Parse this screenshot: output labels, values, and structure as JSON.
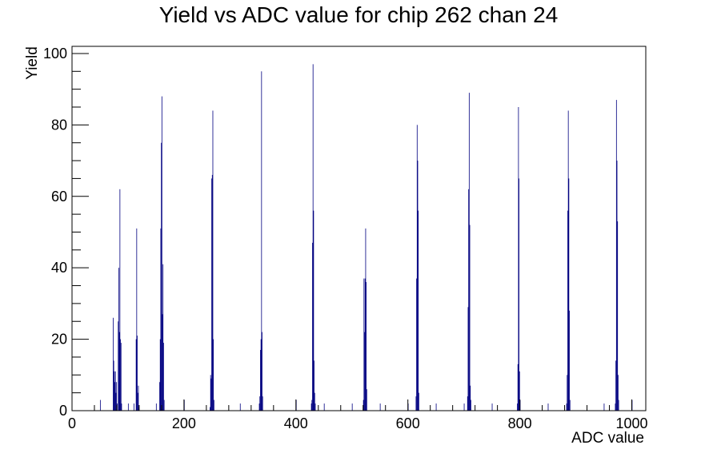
{
  "chart_data": {
    "type": "bar",
    "title": "Yield vs ADC value for chip 262 chan 24",
    "xlabel": "ADC value",
    "ylabel": "Yield",
    "xlim": [
      0,
      1025
    ],
    "ylim": [
      0,
      102
    ],
    "x_ticks": [
      0,
      200,
      400,
      600,
      800,
      1000
    ],
    "y_ticks": [
      0,
      20,
      40,
      60,
      80,
      100
    ],
    "grid": false,
    "legend": "none",
    "colors": {
      "series": "#000080",
      "axis": "#000000"
    },
    "series": [
      {
        "bins": [
          [
            50,
            3
          ],
          [
            73,
            26
          ],
          [
            74,
            14
          ],
          [
            75,
            11
          ],
          [
            76,
            8
          ],
          [
            77,
            11
          ],
          [
            78,
            5
          ],
          [
            79,
            8
          ],
          [
            80,
            2
          ],
          [
            82,
            25
          ],
          [
            83,
            40
          ],
          [
            84,
            22
          ],
          [
            85,
            62
          ],
          [
            86,
            20
          ],
          [
            87,
            19
          ],
          [
            88,
            2
          ],
          [
            100,
            2
          ],
          [
            110,
            2
          ],
          [
            114,
            20
          ],
          [
            115,
            51
          ],
          [
            116,
            21
          ],
          [
            117,
            5
          ],
          [
            118,
            7
          ],
          [
            119,
            1
          ],
          [
            150,
            2
          ],
          [
            156,
            8
          ],
          [
            157,
            20
          ],
          [
            158,
            51
          ],
          [
            159,
            75
          ],
          [
            160,
            88
          ],
          [
            161,
            27
          ],
          [
            162,
            41
          ],
          [
            163,
            19
          ],
          [
            164,
            3
          ],
          [
            200,
            3
          ],
          [
            246,
            1
          ],
          [
            247,
            10
          ],
          [
            248,
            9
          ],
          [
            249,
            65
          ],
          [
            250,
            66
          ],
          [
            251,
            84
          ],
          [
            252,
            20
          ],
          [
            253,
            3
          ],
          [
            300,
            2
          ],
          [
            334,
            2
          ],
          [
            335,
            4
          ],
          [
            336,
            17
          ],
          [
            337,
            20
          ],
          [
            338,
            95
          ],
          [
            339,
            22
          ],
          [
            340,
            4
          ],
          [
            400,
            3
          ],
          [
            427,
            2
          ],
          [
            428,
            3
          ],
          [
            429,
            47
          ],
          [
            430,
            97
          ],
          [
            431,
            56
          ],
          [
            432,
            14
          ],
          [
            433,
            5
          ],
          [
            434,
            2
          ],
          [
            450,
            2
          ],
          [
            500,
            2
          ],
          [
            520,
            3
          ],
          [
            521,
            37
          ],
          [
            522,
            22
          ],
          [
            523,
            37
          ],
          [
            524,
            51
          ],
          [
            525,
            36
          ],
          [
            526,
            6
          ],
          [
            550,
            2
          ],
          [
            600,
            2
          ],
          [
            614,
            4
          ],
          [
            615,
            37
          ],
          [
            616,
            80
          ],
          [
            617,
            70
          ],
          [
            618,
            56
          ],
          [
            619,
            5
          ],
          [
            650,
            2
          ],
          [
            700,
            2
          ],
          [
            706,
            4
          ],
          [
            707,
            29
          ],
          [
            708,
            62
          ],
          [
            709,
            89
          ],
          [
            710,
            52
          ],
          [
            711,
            7
          ],
          [
            712,
            3
          ],
          [
            750,
            2
          ],
          [
            795,
            2
          ],
          [
            796,
            13
          ],
          [
            797,
            85
          ],
          [
            798,
            65
          ],
          [
            799,
            11
          ],
          [
            800,
            3
          ],
          [
            850,
            2
          ],
          [
            883,
            2
          ],
          [
            884,
            10
          ],
          [
            885,
            56
          ],
          [
            886,
            84
          ],
          [
            887,
            65
          ],
          [
            888,
            28
          ],
          [
            889,
            3
          ],
          [
            950,
            2
          ],
          [
            970,
            2
          ],
          [
            971,
            14
          ],
          [
            972,
            87
          ],
          [
            973,
            70
          ],
          [
            974,
            53
          ],
          [
            975,
            10
          ],
          [
            976,
            3
          ],
          [
            1000,
            3
          ]
        ]
      }
    ]
  }
}
